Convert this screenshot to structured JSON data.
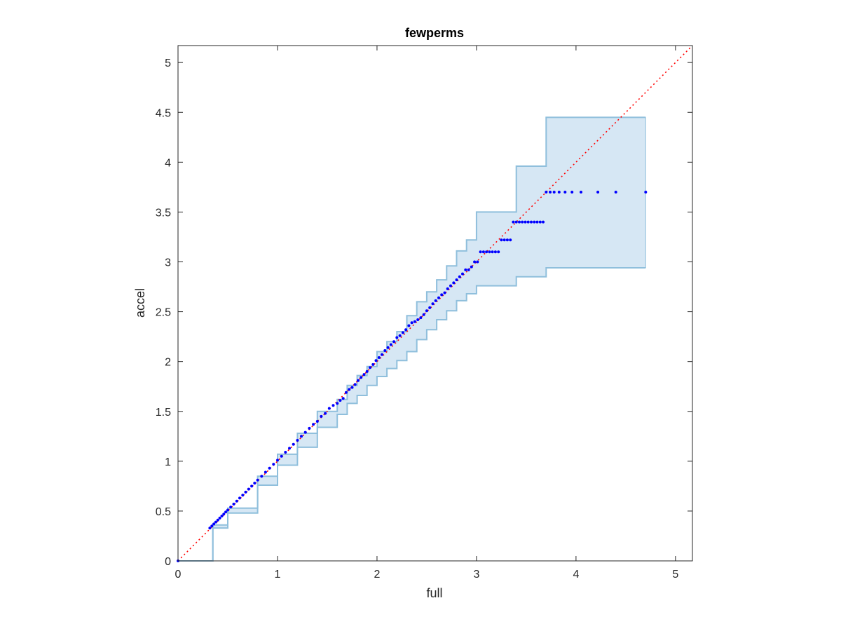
{
  "chart_data": {
    "type": "scatter",
    "title": "fewperms",
    "xlabel": "full",
    "ylabel": "accel",
    "xlim": [
      0,
      5.17
    ],
    "ylim": [
      0,
      5.17
    ],
    "xticks": [
      0,
      1,
      2,
      3,
      4,
      5
    ],
    "yticks": [
      0,
      0.5,
      1,
      1.5,
      2,
      2.5,
      3,
      3.5,
      4,
      4.5,
      5
    ],
    "xtick_labels": [
      "0",
      "1",
      "2",
      "3",
      "4",
      "5"
    ],
    "ytick_labels": [
      "0",
      "0.5",
      "1",
      "1.5",
      "2",
      "2.5",
      "3",
      "3.5",
      "4",
      "4.5",
      "5"
    ],
    "grid": false,
    "colors": {
      "points": "#0000ff",
      "reference_line": "#ff0000",
      "band_fill": "#d6e7f4",
      "band_edge": "#8fbfdc",
      "axes": "#262626"
    },
    "reference_line": {
      "style": "dotted",
      "x": [
        0,
        5.17
      ],
      "y": [
        0,
        5.17
      ]
    },
    "band": {
      "x": [
        0.0,
        0.35,
        0.5,
        0.8,
        1.0,
        1.2,
        1.4,
        1.6,
        1.7,
        1.8,
        1.9,
        2.0,
        2.1,
        2.2,
        2.3,
        2.4,
        2.5,
        2.6,
        2.7,
        2.8,
        2.9,
        3.0,
        3.2,
        3.4,
        3.7,
        4.7
      ],
      "upper": [
        0.0,
        0.36,
        0.53,
        0.85,
        1.07,
        1.28,
        1.5,
        1.62,
        1.76,
        1.86,
        1.95,
        2.1,
        2.2,
        2.3,
        2.46,
        2.6,
        2.7,
        2.82,
        2.96,
        3.11,
        3.22,
        3.5,
        3.5,
        3.96,
        4.45,
        4.45
      ],
      "lower": [
        0.0,
        0.33,
        0.48,
        0.76,
        0.96,
        1.14,
        1.34,
        1.47,
        1.58,
        1.66,
        1.76,
        1.85,
        1.93,
        2.01,
        2.1,
        2.22,
        2.32,
        2.42,
        2.51,
        2.61,
        2.68,
        2.76,
        2.76,
        2.85,
        2.94,
        2.94
      ]
    },
    "series": [
      {
        "x": [
          0.0,
          0.32,
          0.34,
          0.36,
          0.38,
          0.4,
          0.42,
          0.44,
          0.46,
          0.48,
          0.5,
          0.53,
          0.56,
          0.59,
          0.62,
          0.65,
          0.68,
          0.71,
          0.74,
          0.77,
          0.8,
          0.84,
          0.88,
          0.92,
          0.96,
          1.0,
          1.04,
          1.08,
          1.12,
          1.16,
          1.2,
          1.24,
          1.28,
          1.32,
          1.36,
          1.4,
          1.44,
          1.48,
          1.52,
          1.56,
          1.6,
          1.63,
          1.66,
          1.69,
          1.72,
          1.75,
          1.78,
          1.81,
          1.84,
          1.87,
          1.9,
          1.93,
          1.96,
          1.99,
          2.02,
          2.05,
          2.08,
          2.11,
          2.14,
          2.17,
          2.2,
          2.23,
          2.26,
          2.29,
          2.32,
          2.35,
          2.38,
          2.41,
          2.44,
          2.47,
          2.5,
          2.53,
          2.56,
          2.59,
          2.62,
          2.65,
          2.68,
          2.71,
          2.74,
          2.77,
          2.8,
          2.83,
          2.86,
          2.89,
          2.92,
          2.95,
          2.98,
          3.01,
          3.04,
          3.07,
          3.1,
          3.13,
          3.16,
          3.19,
          3.22,
          3.25,
          3.28,
          3.31,
          3.34,
          3.37,
          3.4,
          3.43,
          3.46,
          3.49,
          3.52,
          3.55,
          3.58,
          3.61,
          3.64,
          3.67,
          3.7,
          3.74,
          3.78,
          3.83,
          3.89,
          3.96,
          4.05,
          4.22,
          4.4,
          4.7
        ],
        "y": [
          0.0,
          0.33,
          0.35,
          0.37,
          0.39,
          0.41,
          0.43,
          0.45,
          0.47,
          0.49,
          0.51,
          0.54,
          0.57,
          0.6,
          0.63,
          0.66,
          0.69,
          0.72,
          0.75,
          0.78,
          0.81,
          0.85,
          0.89,
          0.93,
          0.97,
          1.01,
          1.05,
          1.09,
          1.13,
          1.17,
          1.21,
          1.25,
          1.29,
          1.33,
          1.37,
          1.4,
          1.45,
          1.48,
          1.53,
          1.56,
          1.58,
          1.61,
          1.63,
          1.69,
          1.72,
          1.74,
          1.77,
          1.81,
          1.84,
          1.87,
          1.9,
          1.94,
          1.97,
          2.01,
          2.04,
          2.07,
          2.11,
          2.14,
          2.17,
          2.2,
          2.24,
          2.26,
          2.29,
          2.32,
          2.36,
          2.39,
          2.4,
          2.42,
          2.44,
          2.47,
          2.51,
          2.54,
          2.58,
          2.61,
          2.64,
          2.67,
          2.69,
          2.73,
          2.76,
          2.79,
          2.82,
          2.85,
          2.88,
          2.92,
          2.92,
          2.95,
          3.0,
          3.0,
          3.1,
          3.1,
          3.1,
          3.1,
          3.1,
          3.1,
          3.1,
          3.22,
          3.22,
          3.22,
          3.22,
          3.4,
          3.4,
          3.4,
          3.4,
          3.4,
          3.4,
          3.4,
          3.4,
          3.4,
          3.4,
          3.4,
          3.7,
          3.7,
          3.7,
          3.7,
          3.7,
          3.7,
          3.7,
          3.7,
          3.7,
          3.7
        ]
      }
    ]
  }
}
